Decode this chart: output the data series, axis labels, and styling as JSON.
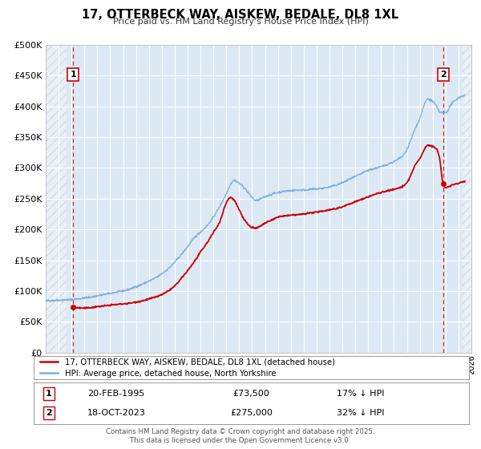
{
  "title": "17, OTTERBECK WAY, AISKEW, BEDALE, DL8 1XL",
  "subtitle": "Price paid vs. HM Land Registry's House Price Index (HPI)",
  "legend_line1": "17, OTTERBECK WAY, AISKEW, BEDALE, DL8 1XL (detached house)",
  "legend_line2": "HPI: Average price, detached house, North Yorkshire",
  "point1_date": "20-FEB-1995",
  "point1_price": "£73,500",
  "point1_hpi": "17% ↓ HPI",
  "point2_date": "18-OCT-2023",
  "point2_price": "£275,000",
  "point2_hpi": "32% ↓ HPI",
  "footer1": "Contains HM Land Registry data © Crown copyright and database right 2025.",
  "footer2": "This data is licensed under the Open Government Licence v3.0.",
  "bg_color": "#dce9f5",
  "fig_bg_color": "#ffffff",
  "line_color_red": "#cc0000",
  "line_color_blue": "#7aaadd",
  "grid_color": "#ffffff",
  "vline_color": "#cc0000",
  "marker_color": "#cc0000",
  "ylim": [
    0,
    500000
  ],
  "yticks": [
    0,
    50000,
    100000,
    150000,
    200000,
    250000,
    300000,
    350000,
    400000,
    450000,
    500000
  ],
  "xlim_start": 1993.0,
  "xlim_end": 2026.0,
  "point1_x": 1995.13,
  "point1_y": 73500,
  "point2_x": 2023.8,
  "point2_y": 275000,
  "hpi_years": [
    1993.0,
    1993.5,
    1994.0,
    1994.5,
    1995.0,
    1995.5,
    1996.0,
    1996.5,
    1997.0,
    1997.5,
    1998.0,
    1998.5,
    1999.0,
    1999.5,
    2000.0,
    2000.5,
    2001.0,
    2001.5,
    2002.0,
    2002.5,
    2003.0,
    2003.5,
    2004.0,
    2004.5,
    2005.0,
    2005.5,
    2006.0,
    2006.5,
    2007.0,
    2007.3,
    2007.6,
    2008.0,
    2008.5,
    2009.0,
    2009.3,
    2009.6,
    2010.0,
    2010.5,
    2011.0,
    2011.5,
    2012.0,
    2012.5,
    2013.0,
    2013.5,
    2014.0,
    2014.5,
    2015.0,
    2015.5,
    2016.0,
    2016.5,
    2017.0,
    2017.5,
    2018.0,
    2018.5,
    2019.0,
    2019.5,
    2020.0,
    2020.3,
    2020.7,
    2021.0,
    2021.3,
    2021.6,
    2022.0,
    2022.3,
    2022.6,
    2023.0,
    2023.3,
    2023.6,
    2024.0,
    2024.5,
    2025.5
  ],
  "hpi_prices": [
    84000,
    84500,
    85000,
    85500,
    86000,
    87000,
    88500,
    90000,
    92000,
    94000,
    96000,
    98000,
    100000,
    103000,
    107000,
    111000,
    116000,
    121000,
    128000,
    136000,
    147000,
    159000,
    172000,
    186000,
    196000,
    206000,
    220000,
    238000,
    258000,
    272000,
    280000,
    275000,
    265000,
    252000,
    247000,
    249000,
    253000,
    257000,
    260000,
    262000,
    263000,
    264000,
    264000,
    265000,
    266000,
    267000,
    269000,
    272000,
    276000,
    281000,
    286000,
    291000,
    296000,
    299000,
    302000,
    306000,
    310000,
    314000,
    320000,
    330000,
    345000,
    362000,
    380000,
    400000,
    412000,
    408000,
    400000,
    390000,
    390000,
    405000,
    418000
  ],
  "red_years": [
    1995.0,
    1995.13,
    1995.5,
    1996.0,
    1996.5,
    1997.0,
    1997.5,
    1998.0,
    1998.5,
    1999.0,
    1999.5,
    2000.0,
    2000.5,
    2001.0,
    2001.5,
    2002.0,
    2002.5,
    2003.0,
    2003.5,
    2004.0,
    2004.5,
    2005.0,
    2005.5,
    2006.0,
    2006.5,
    2007.0,
    2007.3,
    2007.6,
    2008.0,
    2008.5,
    2009.0,
    2009.3,
    2009.6,
    2010.0,
    2010.5,
    2011.0,
    2011.5,
    2012.0,
    2012.5,
    2013.0,
    2013.5,
    2014.0,
    2014.5,
    2015.0,
    2015.5,
    2016.0,
    2016.5,
    2017.0,
    2017.5,
    2018.0,
    2018.5,
    2019.0,
    2019.5,
    2020.0,
    2020.3,
    2020.7,
    2021.0,
    2021.3,
    2021.6,
    2022.0,
    2022.3,
    2022.6,
    2023.0,
    2023.3,
    2023.5,
    2023.8,
    2024.0,
    2024.5,
    2025.5
  ],
  "red_prices": [
    73000,
    73500,
    72500,
    72000,
    73000,
    74500,
    75500,
    77000,
    78000,
    79000,
    80000,
    82000,
    84000,
    87000,
    90000,
    94000,
    100000,
    108000,
    120000,
    133000,
    147000,
    163000,
    178000,
    195000,
    213000,
    243000,
    252000,
    248000,
    232000,
    213000,
    203000,
    202000,
    205000,
    210000,
    215000,
    220000,
    222000,
    223000,
    224000,
    225000,
    227000,
    228000,
    230000,
    232000,
    234000,
    237000,
    241000,
    245000,
    249000,
    253000,
    257000,
    260000,
    263000,
    265000,
    267000,
    270000,
    276000,
    288000,
    303000,
    315000,
    328000,
    337000,
    335000,
    330000,
    320000,
    275000,
    268000,
    272000,
    278000
  ]
}
